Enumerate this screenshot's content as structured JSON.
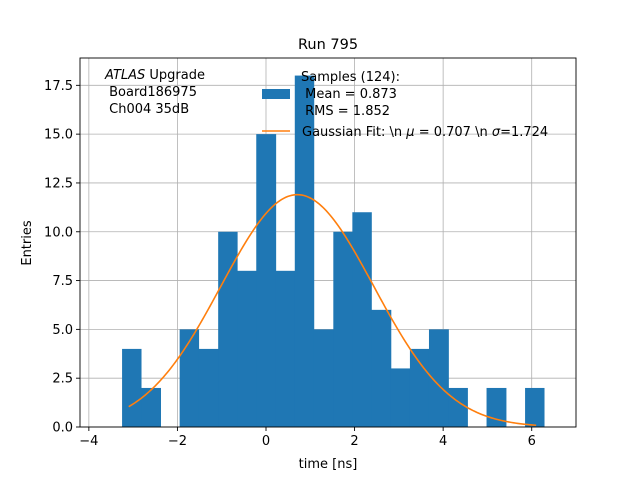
{
  "chart_data": {
    "type": "bar",
    "title": "Run 795",
    "xlabel": "time [ns]",
    "ylabel": "Entries",
    "xlim": [
      -4.2,
      7.0
    ],
    "ylim": [
      0,
      18.9
    ],
    "grid": true,
    "xticks": [
      -4,
      -2,
      0,
      2,
      4,
      6
    ],
    "xtick_labels": [
      "−4",
      "−2",
      "0",
      "2",
      "4",
      "6"
    ],
    "yticks": [
      0.0,
      2.5,
      5.0,
      7.5,
      10.0,
      12.5,
      15.0,
      17.5
    ],
    "ytick_labels": [
      "0.0",
      "2.5",
      "5.0",
      "7.5",
      "10.0",
      "12.5",
      "15.0",
      "17.5"
    ],
    "bin_edges": [
      -3.25,
      -2.82,
      -2.38,
      -1.95,
      -1.52,
      -1.08,
      -0.65,
      -0.22,
      0.22,
      0.65,
      1.08,
      1.52,
      1.95,
      2.38,
      2.82,
      3.25,
      3.68,
      4.12,
      4.55,
      4.98,
      5.42,
      5.85,
      6.28
    ],
    "counts": [
      4,
      2,
      0,
      5,
      4,
      10,
      8,
      15,
      8,
      18,
      5,
      10,
      11,
      6,
      3,
      4,
      5,
      2,
      0,
      2,
      0,
      2
    ],
    "bar_color": "#1f77b4",
    "fit": {
      "name": "Gaussian Fit",
      "amplitude": 11.9,
      "mean": 0.707,
      "sigma": 1.724,
      "x_range": [
        -3.1,
        6.1
      ],
      "color": "#ff7f0e"
    },
    "annotation": {
      "atlas_italic": "ATLAS",
      "atlas_rest": " Upgrade",
      "line2": " Board186975",
      "line3": " Ch004 35dB"
    },
    "legend": {
      "location": "upper-right",
      "hist_line1": "Samples (124):",
      "hist_line2": " Mean = 0.873",
      "hist_line3": " RMS = 1.852",
      "fit_prefix": "Gaussian Fit: \\n ",
      "fit_mu_symbol": "μ",
      "fit_mu_value": " = 0.707 \\n ",
      "fit_sigma_symbol": "σ",
      "fit_sigma_value": "=1.724"
    }
  }
}
